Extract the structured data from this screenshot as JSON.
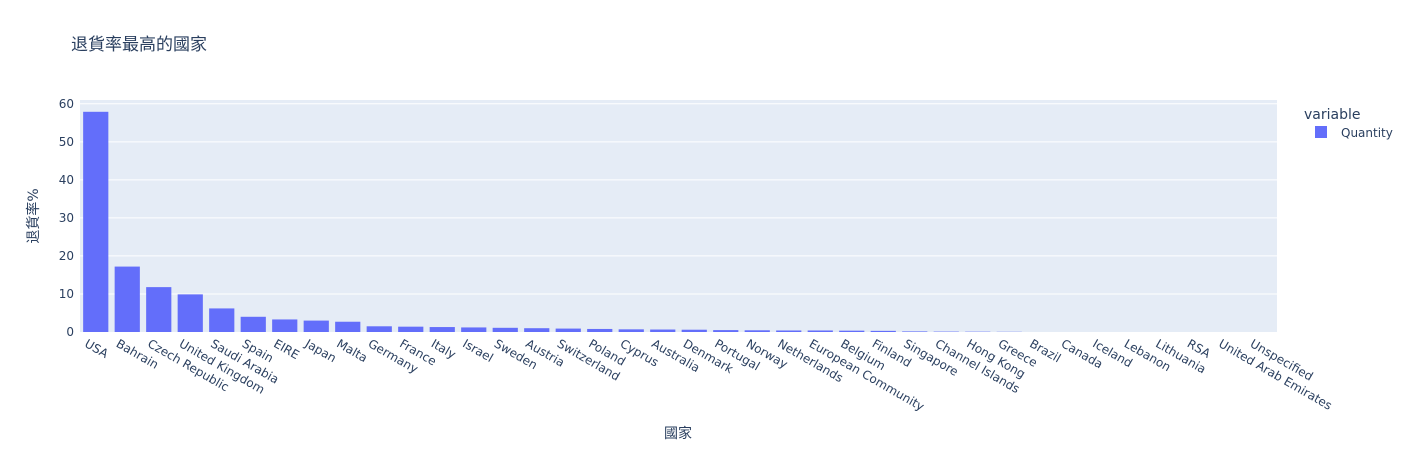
{
  "chart_data": {
    "type": "bar",
    "title": "退貨率最高的國家",
    "xlabel": "國家",
    "ylabel": "退貨率%",
    "ylim": [
      0,
      61
    ],
    "yticks": [
      0,
      10,
      20,
      30,
      40,
      50,
      60
    ],
    "grid": true,
    "legend": {
      "title": "variable",
      "position": "top-right",
      "entries": [
        "Quantity"
      ]
    },
    "bar_color": "#636efa",
    "plot_bg_color": "#e5ecf6",
    "categories": [
      "USA",
      "Bahrain",
      "Czech Republic",
      "United Kingdom",
      "Saudi Arabia",
      "Spain",
      "EIRE",
      "Japan",
      "Malta",
      "Germany",
      "France",
      "Italy",
      "Israel",
      "Sweden",
      "Austria",
      "Switzerland",
      "Poland",
      "Cyprus",
      "Australia",
      "Denmark",
      "Portugal",
      "Norway",
      "Netherlands",
      "European Community",
      "Belgium",
      "Finland",
      "Singapore",
      "Channel Islands",
      "Hong Kong",
      "Greece",
      "Brazil",
      "Canada",
      "Iceland",
      "Lebanon",
      "Lithuania",
      "RSA",
      "United Arab Emirates",
      "Unspecified"
    ],
    "series": [
      {
        "name": "Quantity",
        "values": [
          57.9,
          17.2,
          11.8,
          9.9,
          6.2,
          4.0,
          3.3,
          3.0,
          2.7,
          1.5,
          1.4,
          1.3,
          1.2,
          1.1,
          1.0,
          0.9,
          0.8,
          0.7,
          0.65,
          0.6,
          0.5,
          0.45,
          0.4,
          0.4,
          0.35,
          0.3,
          0.15,
          0.1,
          0.08,
          0.05,
          0,
          0,
          0,
          0,
          0,
          0,
          0,
          0
        ]
      }
    ]
  }
}
